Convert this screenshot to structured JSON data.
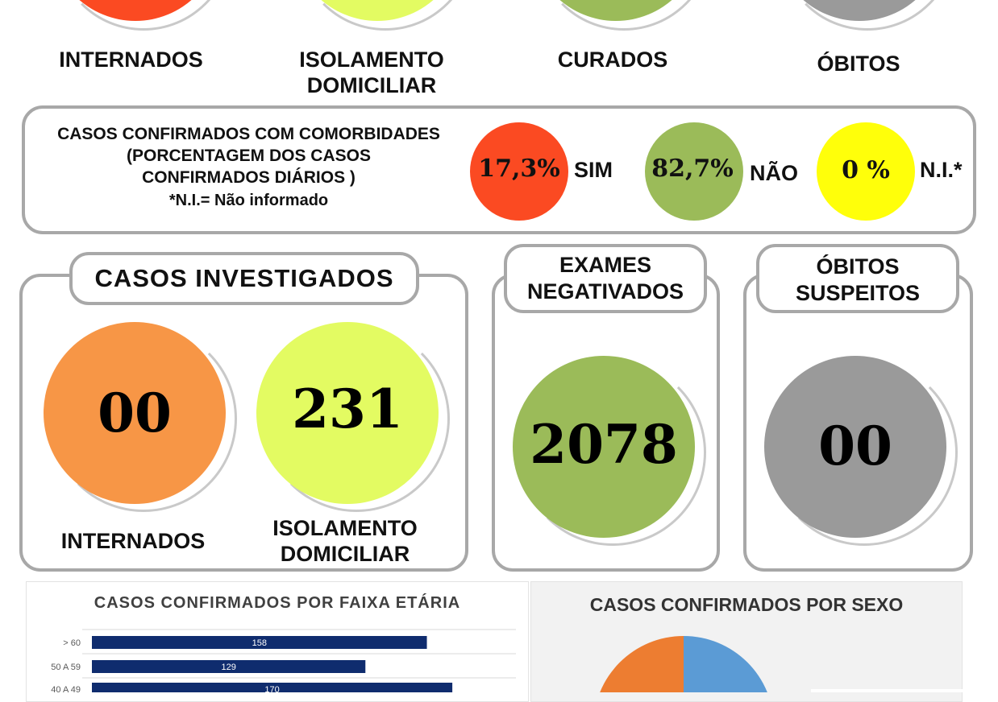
{
  "top_row": {
    "items": [
      {
        "label_1": "INTERNADOS",
        "label_2": "",
        "color": "#fb4a22"
      },
      {
        "label_1": "ISOLAMENTO",
        "label_2": "DOMICILIAR",
        "color": "#e3fb62"
      },
      {
        "label_1": "CURADOS",
        "label_2": "",
        "color": "#9bbb59"
      },
      {
        "label_1": "ÓBITOS",
        "label_2": "",
        "color": "#9a9a9a"
      }
    ]
  },
  "comorbidades": {
    "title_1": "CASOS CONFIRMADOS COM COMORBIDADES",
    "title_2": "(PORCENTAGEM DOS CASOS",
    "title_3": "CONFIRMADOS DIÁRIOS )",
    "note": "*N.I.= Não informado",
    "items": [
      {
        "value": "17,3%",
        "label": "SIM",
        "color": "#fb4a22"
      },
      {
        "value": "82,7%",
        "label": "NÃO",
        "color": "#9bbb59"
      },
      {
        "value": "0 %",
        "label": "N.I.*",
        "color": "#ffff0a"
      }
    ]
  },
  "investigados": {
    "title": "CASOS INVESTIGADOS",
    "internados": {
      "value": "00",
      "label": "INTERNADOS",
      "color": "#f79646"
    },
    "isolamento": {
      "value": "231",
      "label_1": "ISOLAMENTO",
      "label_2": "DOMICILIAR",
      "color": "#e3fb62"
    }
  },
  "exames": {
    "title_1": "EXAMES",
    "title_2": "NEGATIVADOS",
    "value": "2078",
    "color": "#9bbb59"
  },
  "obitos_suspeitos": {
    "title_1": "ÓBITOS",
    "title_2": "SUSPEITOS",
    "value": "00",
    "color": "#9a9a9a"
  },
  "chart_data": [
    {
      "type": "bar",
      "title": "CASOS CONFIRMADOS POR FAIXA ETÁRIA",
      "categories": [
        "> 60",
        "50 A 59",
        "40 A 49"
      ],
      "values": [
        158,
        129,
        170
      ],
      "bar_color": "#0f2c6e"
    },
    {
      "type": "pie",
      "title": "CASOS CONFIRMADOS POR SEXO",
      "colors": [
        "#5b9bd5",
        "#ed7d31"
      ]
    }
  ]
}
